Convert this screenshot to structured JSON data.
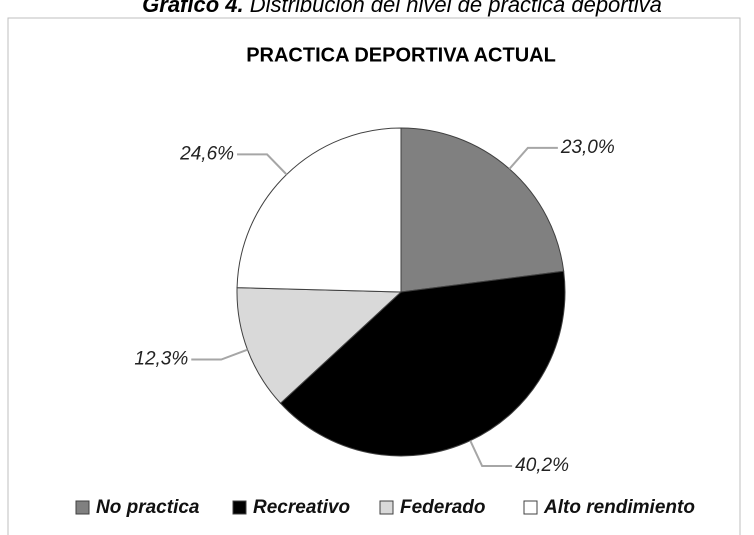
{
  "chart_data": {
    "type": "pie",
    "caption_label": "Gráfico 4.",
    "caption": "Distribución del nivel de práctica deportiva",
    "title": "PRACTICA DEPORTIVA ACTUAL",
    "categories": [
      "No practica",
      "Recreativo",
      "Federado",
      "Alto rendimiento"
    ],
    "values": [
      23.0,
      40.2,
      12.3,
      24.6
    ],
    "value_labels": [
      "23,0%",
      "40,2%",
      "12,3%",
      "24,6%"
    ],
    "colors": [
      "#808080",
      "#000000",
      "#d9d9d9",
      "#ffffff"
    ],
    "legend": "bottom"
  }
}
